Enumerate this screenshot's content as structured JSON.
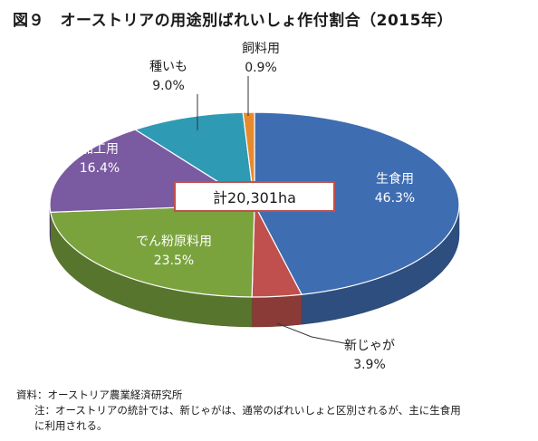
{
  "figure": {
    "title": "図９　オーストリアの用途別ばれいしょ作付割合（2015年）",
    "total": "計20,301ha"
  },
  "chart_data": {
    "type": "pie",
    "style": "3d",
    "unit": "%",
    "slices": [
      {
        "name": "生食用",
        "value": 46.3,
        "value_label": "46.3%",
        "color": "#3f6db1"
      },
      {
        "name": "新じゃが",
        "value": 3.9,
        "value_label": "3.9%",
        "color": "#c0504d"
      },
      {
        "name": "でん粉原料用",
        "value": 23.5,
        "value_label": "23.5%",
        "color": "#7aa33e"
      },
      {
        "name": "加工用",
        "value": 16.4,
        "value_label": "16.4%",
        "color": "#7a5aa0"
      },
      {
        "name": "種いも",
        "value": 9.0,
        "value_label": "9.0%",
        "color": "#2f9ab4"
      },
      {
        "name": "飼料用",
        "value": 0.9,
        "value_label": "0.9%",
        "color": "#e68a2e"
      }
    ]
  },
  "notes": {
    "source": "資料：オーストリア農業経済研究所",
    "note_line1": "注：オーストリアの統計では、新じゃがは、通常のばれいしょと区別されるが、主に生食用",
    "note_line2": "に利用される。"
  }
}
